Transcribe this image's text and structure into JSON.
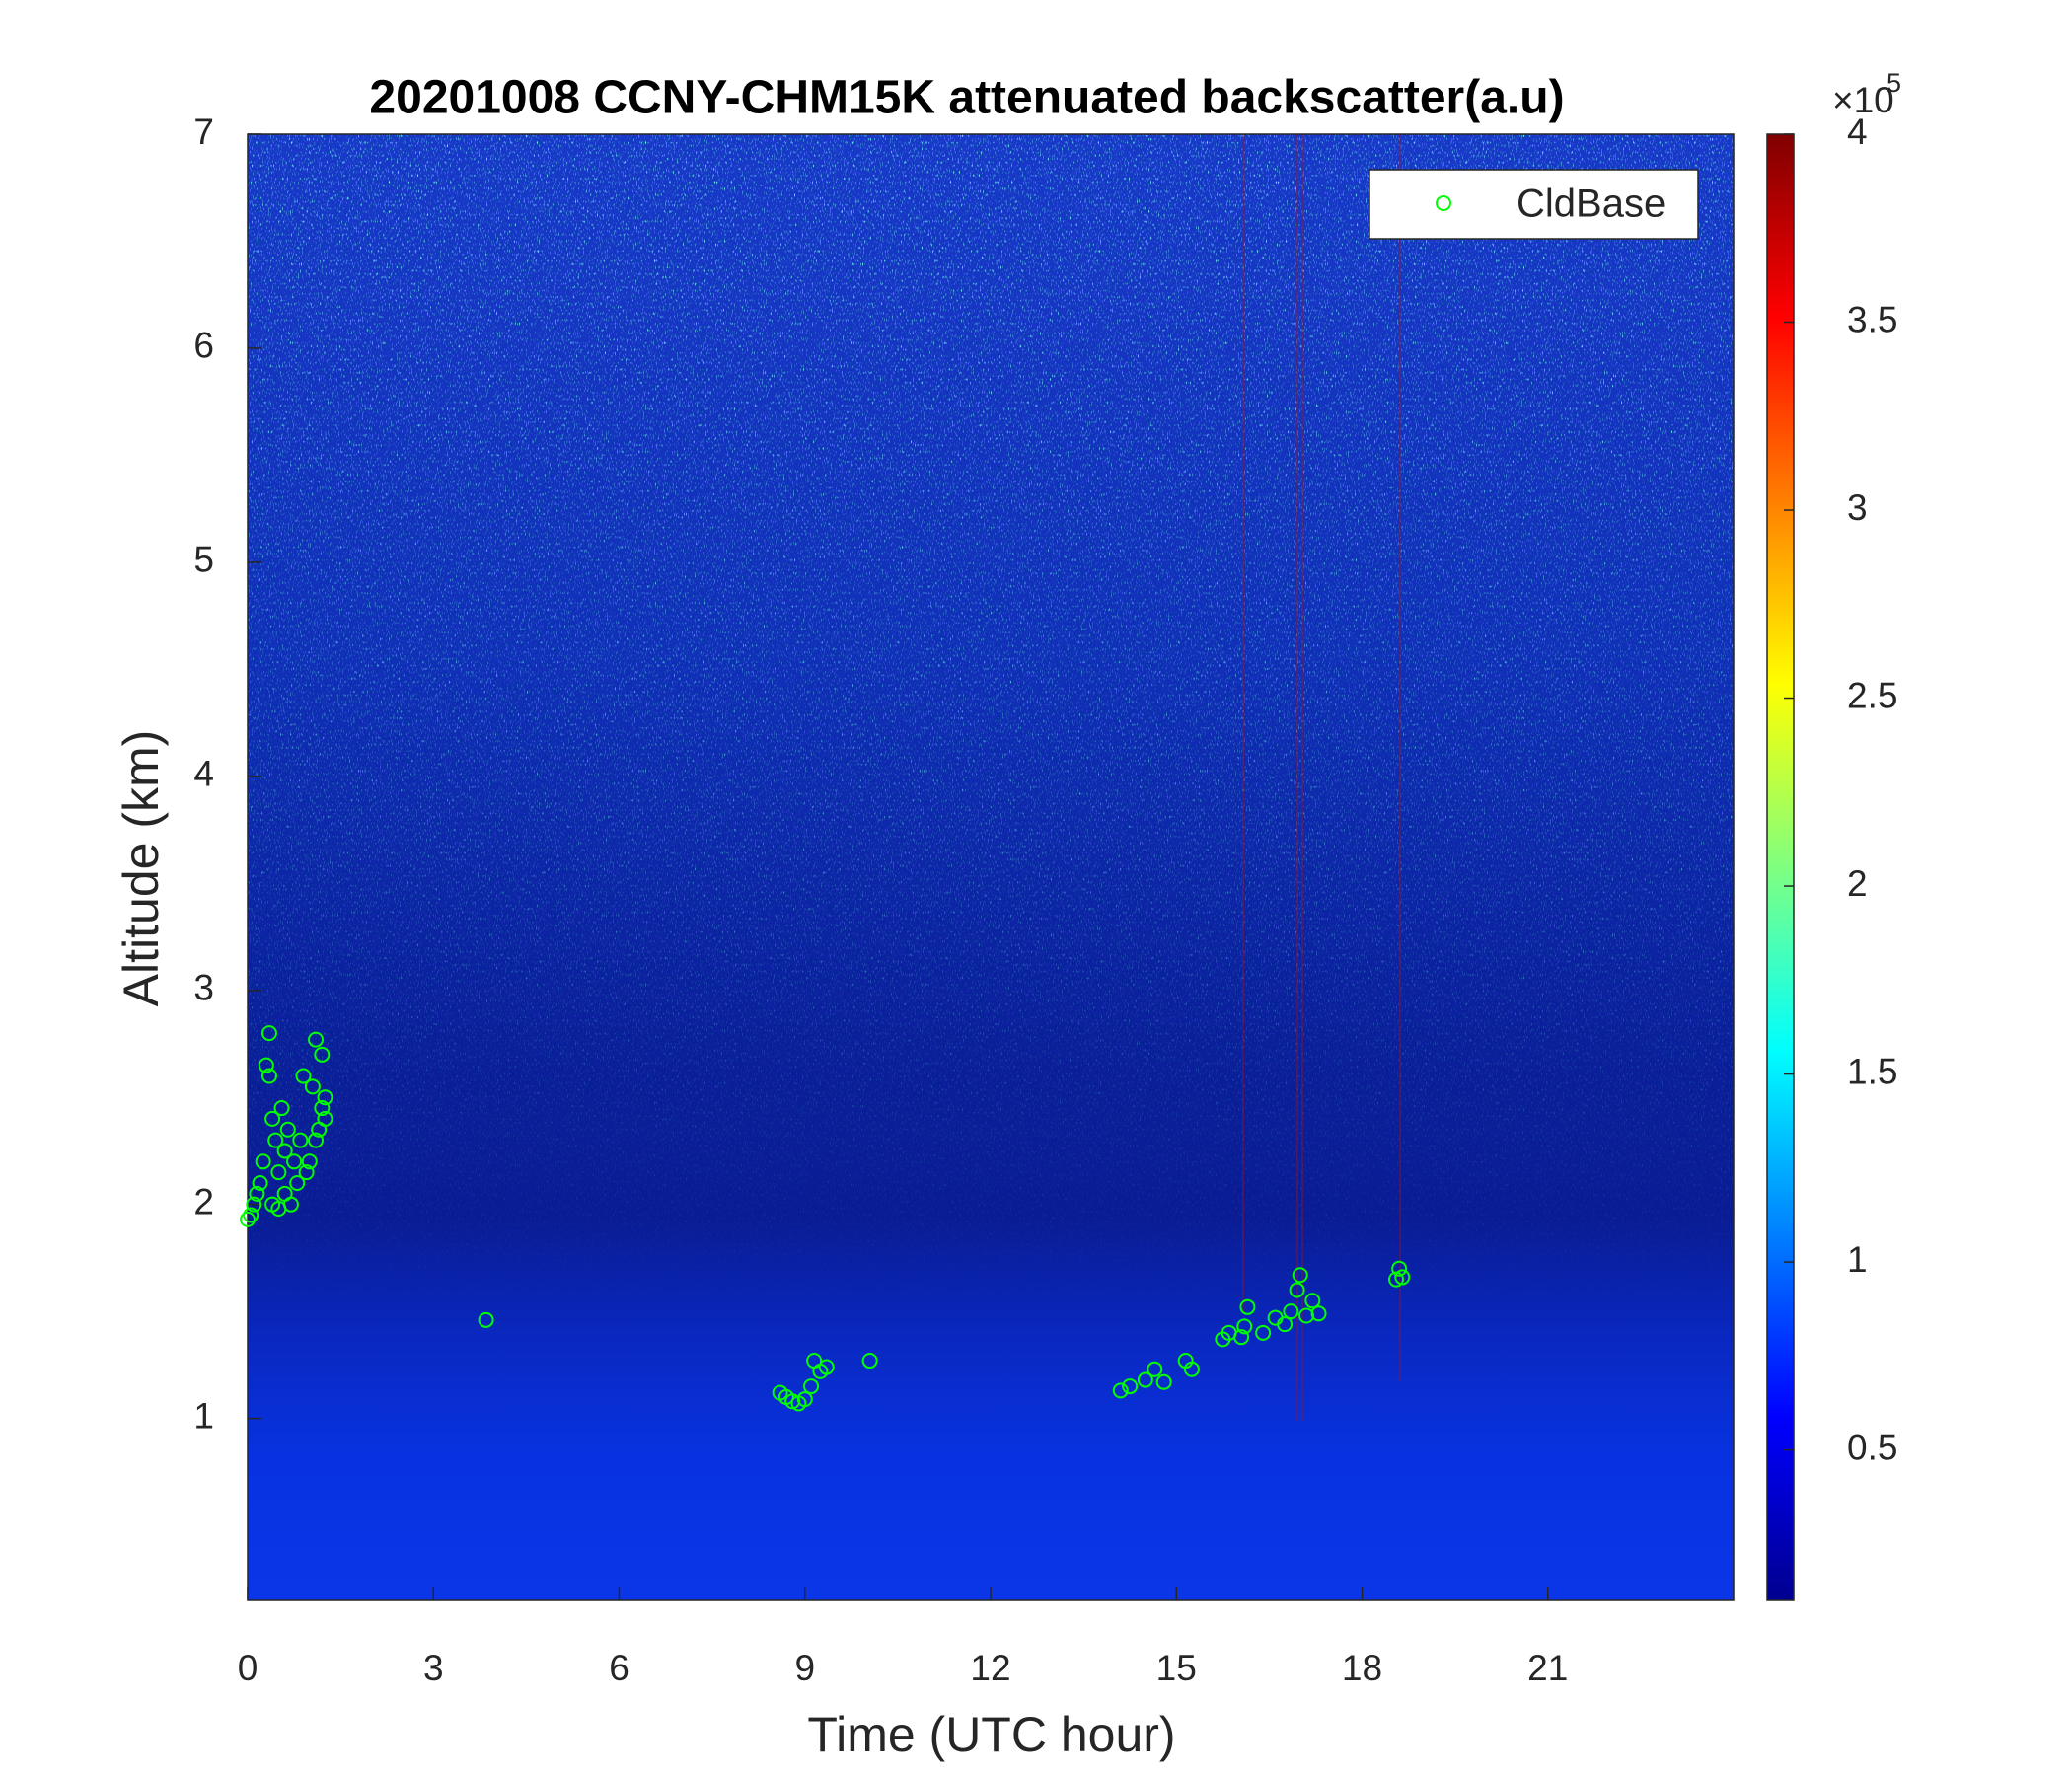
{
  "chart_data": {
    "type": "scatter",
    "title": "20201008 CCNY-CHM15K attenuated backscatter(a.u)",
    "x_label": "Time (UTC hour)",
    "y_label": "Altitude (km)",
    "xlim": [
      0,
      24
    ],
    "xticks": [
      0,
      3,
      6,
      9,
      12,
      15,
      18,
      21
    ],
    "ylim": [
      0.15,
      7
    ],
    "yticks": [
      1,
      2,
      3,
      4,
      5,
      6,
      7
    ],
    "x": [
      0.0,
      0.05,
      0.1,
      0.15,
      0.2,
      0.25,
      0.3,
      0.35,
      0.35,
      0.4,
      0.4,
      0.45,
      0.5,
      0.5,
      0.55,
      0.6,
      0.6,
      0.65,
      0.7,
      0.75,
      0.8,
      0.85,
      0.9,
      0.95,
      1.0,
      1.05,
      1.1,
      1.1,
      1.15,
      1.2,
      1.2,
      1.25,
      1.25,
      3.85,
      8.6,
      8.7,
      8.8,
      8.9,
      9.0,
      9.1,
      9.15,
      9.25,
      9.35,
      10.05,
      14.1,
      14.25,
      14.5,
      14.65,
      14.8,
      15.15,
      15.25,
      15.75,
      15.85,
      16.05,
      16.1,
      16.15,
      16.4,
      16.6,
      16.75,
      16.85,
      16.95,
      17.0,
      17.1,
      17.2,
      17.3,
      18.55,
      18.6,
      18.65
    ],
    "series": [
      {
        "name": "CldBase",
        "color": "#00ff00",
        "values": [
          1.93,
          1.95,
          2.0,
          2.05,
          2.1,
          2.2,
          2.65,
          2.8,
          2.6,
          2.4,
          2.0,
          2.3,
          2.15,
          1.98,
          2.45,
          2.25,
          2.05,
          2.35,
          2.0,
          2.2,
          2.1,
          2.3,
          2.6,
          2.15,
          2.2,
          2.55,
          2.77,
          2.3,
          2.35,
          2.7,
          2.45,
          2.4,
          2.5,
          1.46,
          1.12,
          1.1,
          1.08,
          1.07,
          1.09,
          1.15,
          1.27,
          1.22,
          1.24,
          1.27,
          1.13,
          1.15,
          1.18,
          1.23,
          1.17,
          1.27,
          1.23,
          1.37,
          1.4,
          1.38,
          1.43,
          1.52,
          1.4,
          1.47,
          1.44,
          1.5,
          1.6,
          1.67,
          1.48,
          1.55,
          1.49,
          1.65,
          1.7,
          1.66
        ]
      }
    ],
    "legend": "top-right",
    "colorbar": {
      "lim": [
        0.1,
        4
      ],
      "ticks": [
        0.5,
        1,
        1.5,
        2,
        2.5,
        3,
        3.5,
        4
      ],
      "multiplier": "×10",
      "exponent": "5"
    }
  }
}
